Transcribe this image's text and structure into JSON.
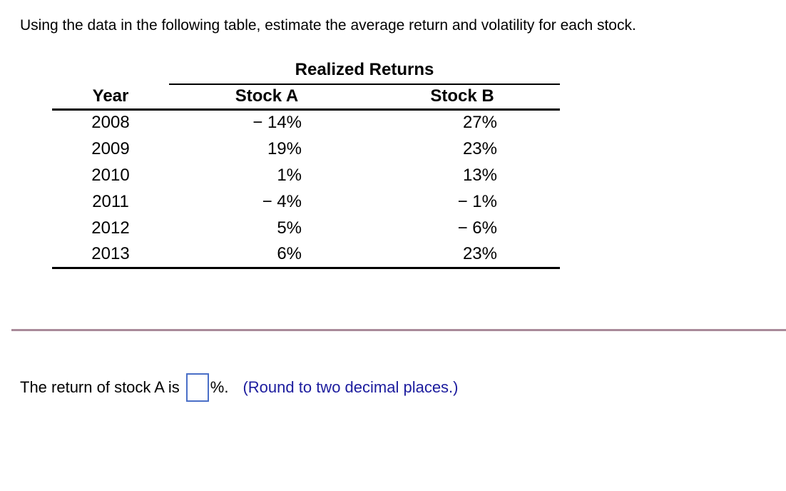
{
  "question": {
    "prompt": "Using the data in the following table, estimate the average return and volatility for each stock."
  },
  "table": {
    "group_header": "Realized Returns",
    "columns": [
      "Year",
      "Stock A",
      "Stock B"
    ],
    "rows": [
      {
        "year": "2008",
        "stock_a": "− 14%",
        "stock_b": "27%"
      },
      {
        "year": "2009",
        "stock_a": "19%",
        "stock_b": "23%"
      },
      {
        "year": "2010",
        "stock_a": "1%",
        "stock_b": "13%"
      },
      {
        "year": "2011",
        "stock_a": "− 4%",
        "stock_b": "− 1%"
      },
      {
        "year": "2012",
        "stock_a": "5%",
        "stock_b": "− 6%"
      },
      {
        "year": "2013",
        "stock_a": "6%",
        "stock_b": "23%"
      }
    ]
  },
  "answer_section": {
    "prefix": "The return of stock A is",
    "input_value": "",
    "suffix": "%.",
    "hint": "(Round to two decimal places.)"
  },
  "colors": {
    "hint_blue": "#1c1c9e",
    "input_border_blue": "#4a6fc7",
    "divider_mauve": "#a98a9a",
    "text": "#000000",
    "background": "#ffffff"
  }
}
